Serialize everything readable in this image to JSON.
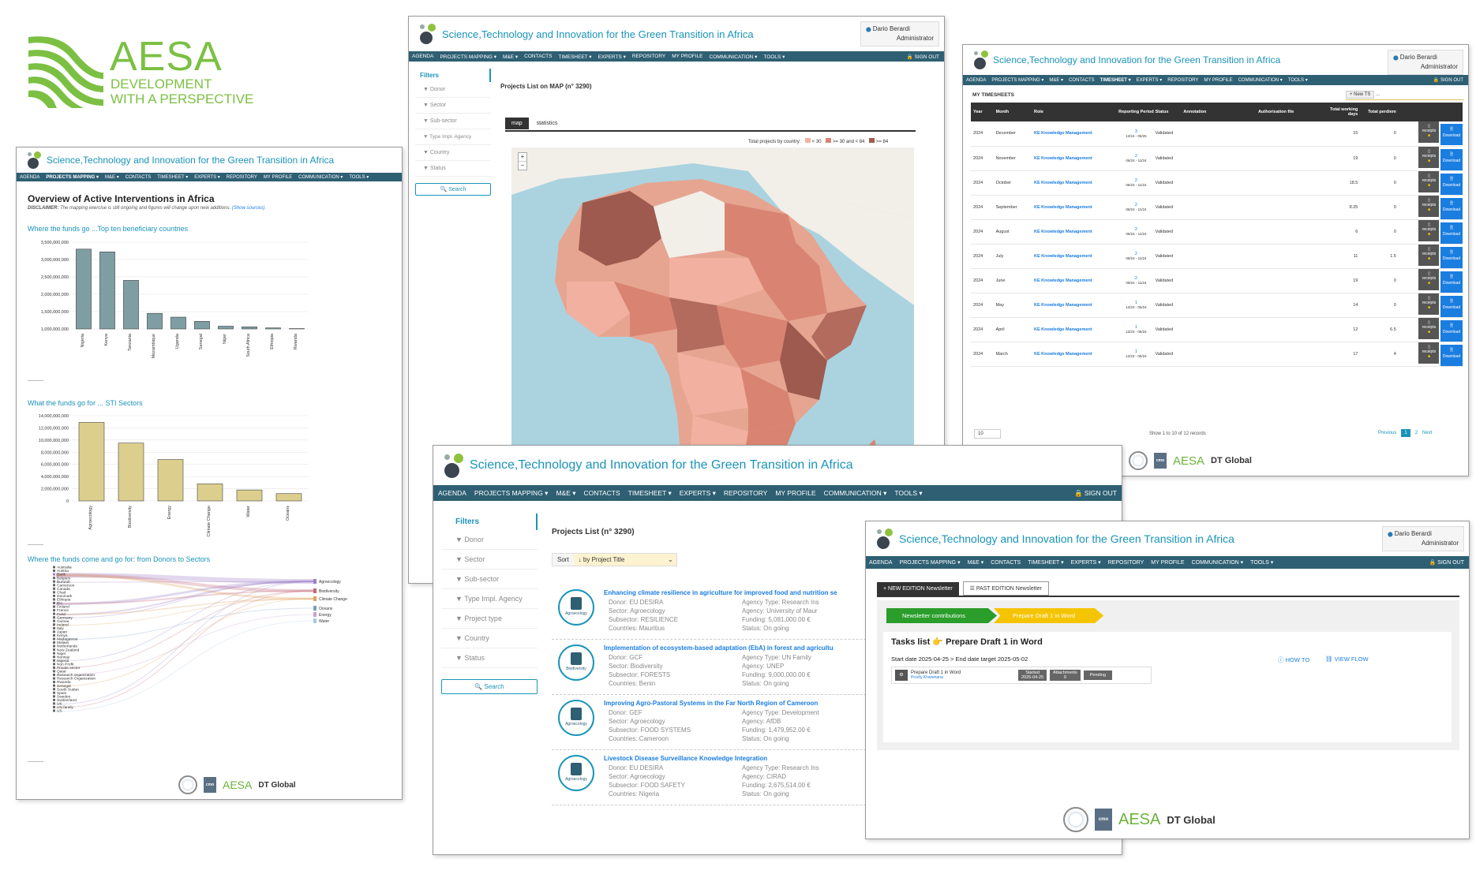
{
  "brand": {
    "name": "AESA",
    "tagline1": "DEVELOPMENT",
    "tagline2": "WITH A PERSPECTIVE"
  },
  "app_title": "Science,Technology and Innovation for the Green Transition in Africa",
  "nav": [
    "AGENDA",
    "PROJECTS MAPPING ▾",
    "M&E ▾",
    "CONTACTS",
    "TIMESHEET ▾",
    "EXPERTS ▾",
    "REPOSITORY",
    "MY PROFILE",
    "COMMUNICATION ▾",
    "TOOLS ▾"
  ],
  "signout": "SIGN OUT",
  "user": {
    "name": "Dario Berardi",
    "role": "Administrator"
  },
  "footer": {
    "cmo": "cmo",
    "aesa": "AESA",
    "dt": "DT Global"
  },
  "overview": {
    "page_title": "Overview of Active Interventions in Africa",
    "disclaimer_label": "DISCLAIMER:",
    "disclaimer": "The mapping exercise is still ongoing and figures will change upon new additions.",
    "show_sources": "(Show sources)",
    "c1_title": "Where the funds go ...Top ten beneficiary countries",
    "c2_title": "What the funds go for ... STI Sectors",
    "c3_title": "Where the funds come and go for: from Donors to Sectors",
    "sankey_left": [
      "Australia",
      "Austria",
      "Bank",
      "Belgium",
      "Burundi",
      "Cameroon",
      "Canada",
      "Chad",
      "Denmark",
      "Ethiopia",
      "EU",
      "Finland",
      "France",
      "Fund",
      "Germany",
      "Guinea",
      "Ireland",
      "Italy",
      "Japan",
      "Kenya",
      "Madagascar",
      "Malawi",
      "Netherlands",
      "New Zealand",
      "Niger",
      "Norway",
      "Nigeria",
      "Non Profit",
      "Private sector",
      "Qatar",
      "Research organization",
      "Research Organization",
      "Rwanda",
      "Senegal",
      "South Sudan",
      "Spain",
      "Sweden",
      "Switzerland",
      "UK",
      "UN family",
      "US"
    ],
    "sankey_right": [
      "Agroecology",
      "Biodiversity",
      "Climate Change",
      "Oceans",
      "Energy",
      "Water"
    ]
  },
  "map": {
    "filters": "Filters",
    "filter_items": [
      "Donor",
      "Sector",
      "Sub-sector",
      "Type Impl. Agency",
      "Country",
      "Status"
    ],
    "search": "Search",
    "title": "Projects List on MAP (n° 3290)",
    "tabs": [
      "map",
      "statistics"
    ],
    "legend_title": "Total projects by country:",
    "legend": [
      "< 30",
      ">= 30 and < 84",
      ">= 84"
    ],
    "zoom_in": "+",
    "zoom_out": "−"
  },
  "timesheet": {
    "heading": "MY TIMESHEETS",
    "new_ts": "New TS",
    "cols": [
      "Year",
      "Month",
      "Role",
      "Reporting Period",
      "Status",
      "Annotation",
      "Authorisation file",
      "Total working days",
      "Total perdiem",
      ""
    ],
    "rows": [
      {
        "year": "2024",
        "month": "December",
        "role": "KE Knowledge Management",
        "num": "3",
        "period": "12/24 - 05/25",
        "status": "Validated",
        "days": "15",
        "perdiem": "0"
      },
      {
        "year": "2024",
        "month": "November",
        "role": "KE Knowledge Management",
        "num": "2",
        "period": "06/24 - 11/24",
        "status": "Validated",
        "days": "19",
        "perdiem": "0"
      },
      {
        "year": "2024",
        "month": "October",
        "role": "KE Knowledge Management",
        "num": "2",
        "period": "06/24 - 11/24",
        "status": "Validated",
        "days": "18.5",
        "perdiem": "0"
      },
      {
        "year": "2024",
        "month": "September",
        "role": "KE Knowledge Management",
        "num": "2",
        "period": "06/24 - 11/24",
        "status": "Validated",
        "days": "8.25",
        "perdiem": "0"
      },
      {
        "year": "2024",
        "month": "August",
        "role": "KE Knowledge Management",
        "num": "2",
        "period": "06/24 - 11/24",
        "status": "Validated",
        "days": "6",
        "perdiem": "0"
      },
      {
        "year": "2024",
        "month": "July",
        "role": "KE Knowledge Management",
        "num": "2",
        "period": "06/24 - 11/24",
        "status": "Validated",
        "days": "11",
        "perdiem": "1.5"
      },
      {
        "year": "2024",
        "month": "June",
        "role": "KE Knowledge Management",
        "num": "2",
        "period": "06/24 - 11/24",
        "status": "Validated",
        "days": "19",
        "perdiem": "0"
      },
      {
        "year": "2024",
        "month": "May",
        "role": "KE Knowledge Management",
        "num": "1",
        "period": "12/23 - 05/24",
        "status": "Validated",
        "days": "14",
        "perdiem": "0"
      },
      {
        "year": "2024",
        "month": "April",
        "role": "KE Knowledge Management",
        "num": "1",
        "period": "12/23 - 05/24",
        "status": "Validated",
        "days": "12",
        "perdiem": "6.5"
      },
      {
        "year": "2024",
        "month": "March",
        "role": "KE Knowledge Management",
        "num": "1",
        "period": "12/23 - 05/24",
        "status": "Validated",
        "days": "17",
        "perdiem": "4"
      }
    ],
    "receipts": "receipts",
    "download": "Download",
    "page_size": "10",
    "info": "Show 1 to 10 of 12 records",
    "pager": [
      "Previous",
      "1",
      "2",
      "Next"
    ]
  },
  "plist": {
    "filters": "Filters",
    "filter_items": [
      "Donor",
      "Sector",
      "Sub-sector",
      "Type Impl. Agency",
      "Project type",
      "Country",
      "Status"
    ],
    "search": "Search",
    "title": "Projects List (n° 3290)",
    "sort_label": "Sort",
    "sort_value": "↓ by Project Title",
    "projects": [
      {
        "title": "Enhancing climate resilience in agriculture for improved food and nutrition se",
        "donor": "Donor: EU DESIRA",
        "sector": "Sector: Agroecology",
        "sub": "Subsector: RESILIENCE",
        "country": "Countries: Mauritius",
        "atype": "Agency Type: Research Ins",
        "agency": "Agency: University of Maur",
        "funding": "Funding: 5,081,000.00 €",
        "status": "Status: On going",
        "badge": "Agroecology"
      },
      {
        "title": "Implementation of ecosystem-based adaptation (EbA) in forest and agricultu",
        "donor": "Donor: GCF",
        "sector": "Sector: Biodiversity",
        "sub": "Subsector: FORESTS",
        "country": "Countries: Benin",
        "atype": "Agency Type: UN Family",
        "agency": "Agency: UNEP",
        "funding": "Funding: 9,000,000.00 €",
        "status": "Status: On going",
        "badge": "Biodiversity"
      },
      {
        "title": "Improving Agro-Pastoral Systems in the Far North Region of Cameroon",
        "donor": "Donor: GEF",
        "sector": "Sector: Agroecology",
        "sub": "Subsector: FOOD SYSTEMS",
        "country": "Countries: Cameroon",
        "atype": "Agency Type: Development",
        "agency": "Agency: AfDB",
        "funding": "Funding: 1,479,952.00 €",
        "status": "Status: On going",
        "badge": "Agroecology"
      },
      {
        "title": "Livestock Disease Surveillance Knowledge Integration",
        "donor": "Donor: EU DESIRA",
        "sector": "Sector: Agroecology",
        "sub": "Subsector: FOOD SAFETY",
        "country": "Countries: Nigeria",
        "atype": "Agency Type: Research Ins",
        "agency": "Agency: CIRAD",
        "funding": "Funding: 2,675,514.00 €",
        "status": "Status: On going",
        "badge": "Agroecology"
      }
    ]
  },
  "newsletter": {
    "tab_new": "+ NEW EDITION Newsletter",
    "tab_past": "☰ PAST EDITION Newsletter",
    "step1": "Newsletter contributions",
    "step2": "Prepare Draft 1 in Word",
    "task_title": "Tasks list 👉 Prepare Draft 1 in Word",
    "dates": "Start date 2025-04-25 > End date target 2025-05-02",
    "how_to": "HOW TO",
    "view_flow": "VIEW FLOW",
    "task_name": "Prepare Draft 1 in Word",
    "task_user": "Proofy Khwomana",
    "started_label": "Started",
    "started_date": "2025-04-25",
    "attach_label": "Attachments",
    "attach_count": "0",
    "pending": "Pending"
  },
  "chart_data": [
    {
      "type": "bar",
      "title": "Where the funds go ...Top ten beneficiary countries",
      "categories": [
        "Nigeria",
        "Kenya",
        "Tanzania",
        "Mozambique",
        "Uganda",
        "Senegal",
        "Niger",
        "South Africa",
        "Ethiopia",
        "Rwanda"
      ],
      "values": [
        3300000000,
        3220000000,
        2400000000,
        1450000000,
        1340000000,
        1220000000,
        1080000000,
        1060000000,
        1030000000,
        1010000000
      ],
      "ylim": [
        1000000000,
        3500000000
      ],
      "yticks": [
        "3,500,000,000",
        "3,000,000,000",
        "2,500,000,000",
        "2,000,000,000",
        "1,500,000,000",
        "1,000,000,000"
      ],
      "color": "#7f9ea4"
    },
    {
      "type": "bar",
      "title": "What the funds go for ... STI Sectors",
      "categories": [
        "Agroecology",
        "Biodiversity",
        "Energy",
        "Climate Change",
        "Water",
        "Oceans"
      ],
      "values": [
        12900000000,
        9500000000,
        6800000000,
        2800000000,
        1800000000,
        1200000000
      ],
      "ylim": [
        0,
        14000000000
      ],
      "yticks": [
        "14,000,000,000",
        "12,000,000,000",
        "10,000,000,000",
        "8,000,000,000",
        "6,000,000,000",
        "4,000,000,000",
        "2,000,000,000",
        "0"
      ],
      "color": "#dccf8e"
    }
  ],
  "colors": {
    "teal": "#1a94b8",
    "nav": "#2e5f73",
    "green": "#6bb33a",
    "map_low": "#f2b1a0",
    "map_mid": "#d98472",
    "map_high": "#9e5a4e"
  }
}
